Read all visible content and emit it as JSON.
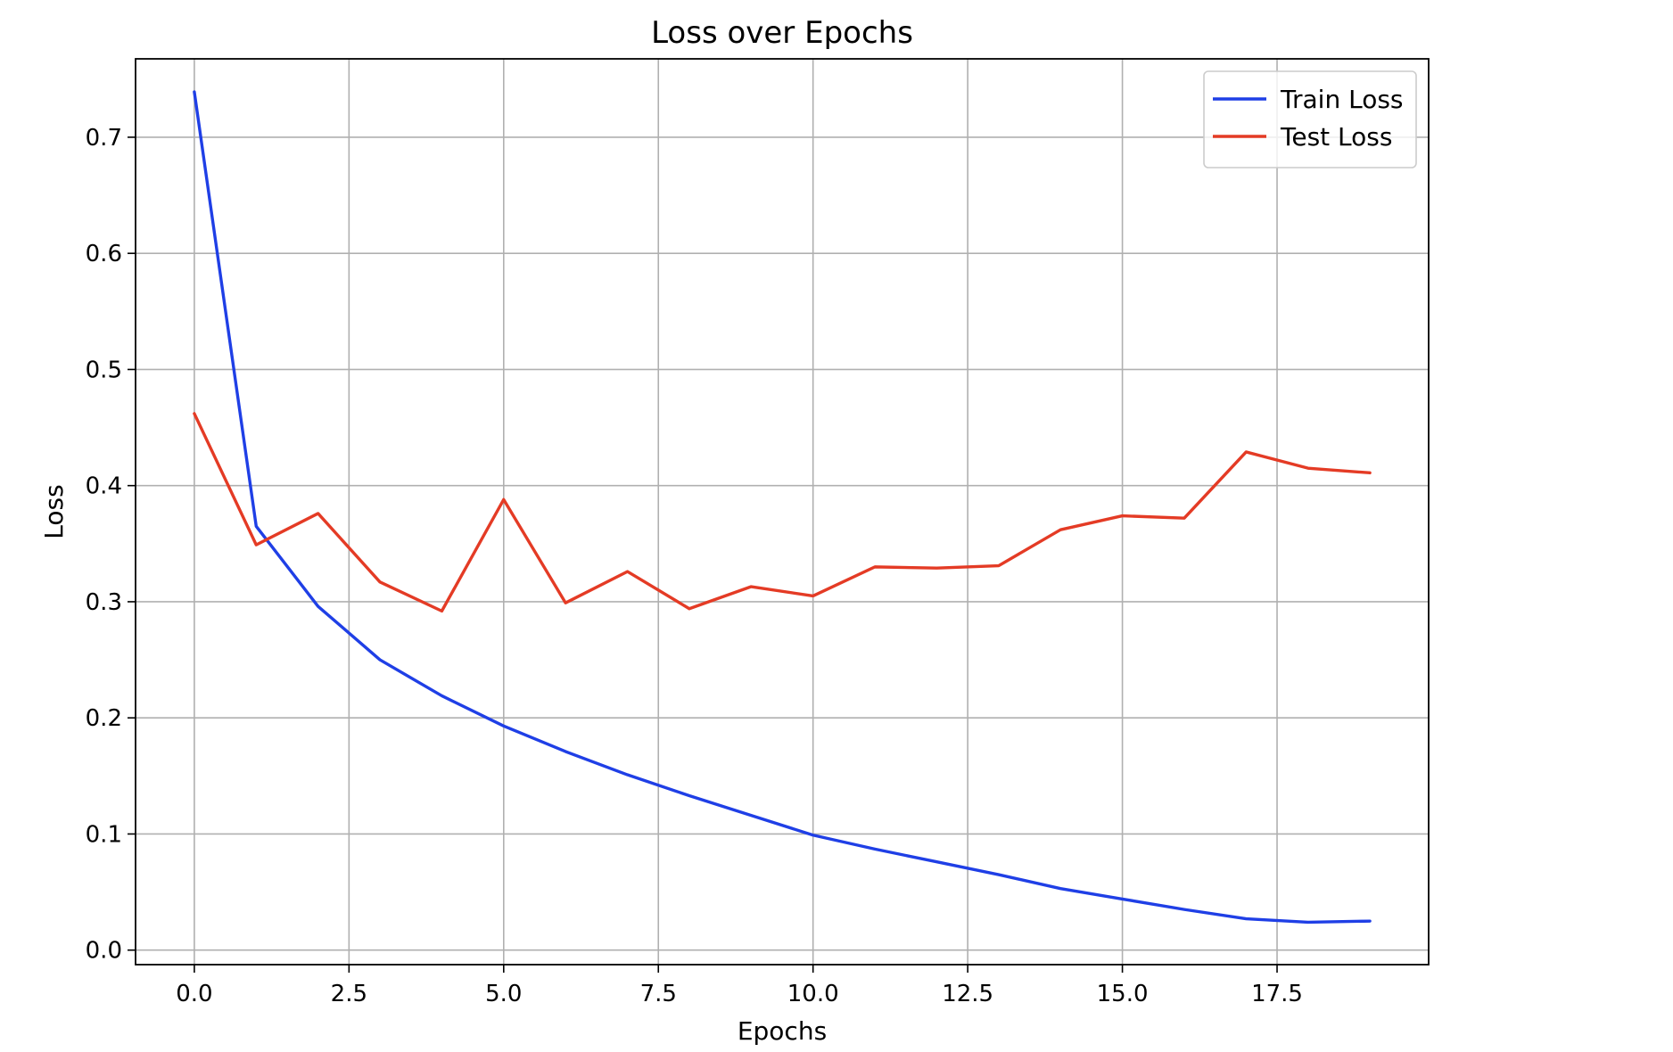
{
  "chart_data": {
    "type": "line",
    "title": "Loss over Epochs",
    "xlabel": "Epochs",
    "ylabel": "Loss",
    "xlim": [
      -0.95,
      19.95
    ],
    "ylim": [
      -0.0125,
      0.7675
    ],
    "xticks": [
      0.0,
      2.5,
      5.0,
      7.5,
      10.0,
      12.5,
      15.0,
      17.5
    ],
    "xtick_labels": [
      "0.0",
      "2.5",
      "5.0",
      "7.5",
      "10.0",
      "12.5",
      "15.0",
      "17.5"
    ],
    "yticks": [
      0.0,
      0.1,
      0.2,
      0.3,
      0.4,
      0.5,
      0.6,
      0.7
    ],
    "ytick_labels": [
      "0.0",
      "0.1",
      "0.2",
      "0.3",
      "0.4",
      "0.5",
      "0.6",
      "0.7"
    ],
    "grid": true,
    "legend_position": "top-right",
    "x": [
      0,
      1,
      2,
      3,
      4,
      5,
      6,
      7,
      8,
      9,
      10,
      11,
      12,
      13,
      14,
      15,
      16,
      17,
      18,
      19
    ],
    "series": [
      {
        "name": "Train Loss",
        "color": "#1f3fe6",
        "values": [
          0.739,
          0.365,
          0.296,
          0.25,
          0.219,
          0.193,
          0.171,
          0.151,
          0.133,
          0.116,
          0.099,
          0.087,
          0.076,
          0.065,
          0.053,
          0.044,
          0.035,
          0.027,
          0.024,
          0.025
        ]
      },
      {
        "name": "Test Loss",
        "color": "#e43b25",
        "values": [
          0.462,
          0.349,
          0.376,
          0.317,
          0.292,
          0.388,
          0.299,
          0.326,
          0.294,
          0.313,
          0.305,
          0.33,
          0.329,
          0.331,
          0.362,
          0.374,
          0.372,
          0.429,
          0.415,
          0.411
        ]
      }
    ]
  }
}
